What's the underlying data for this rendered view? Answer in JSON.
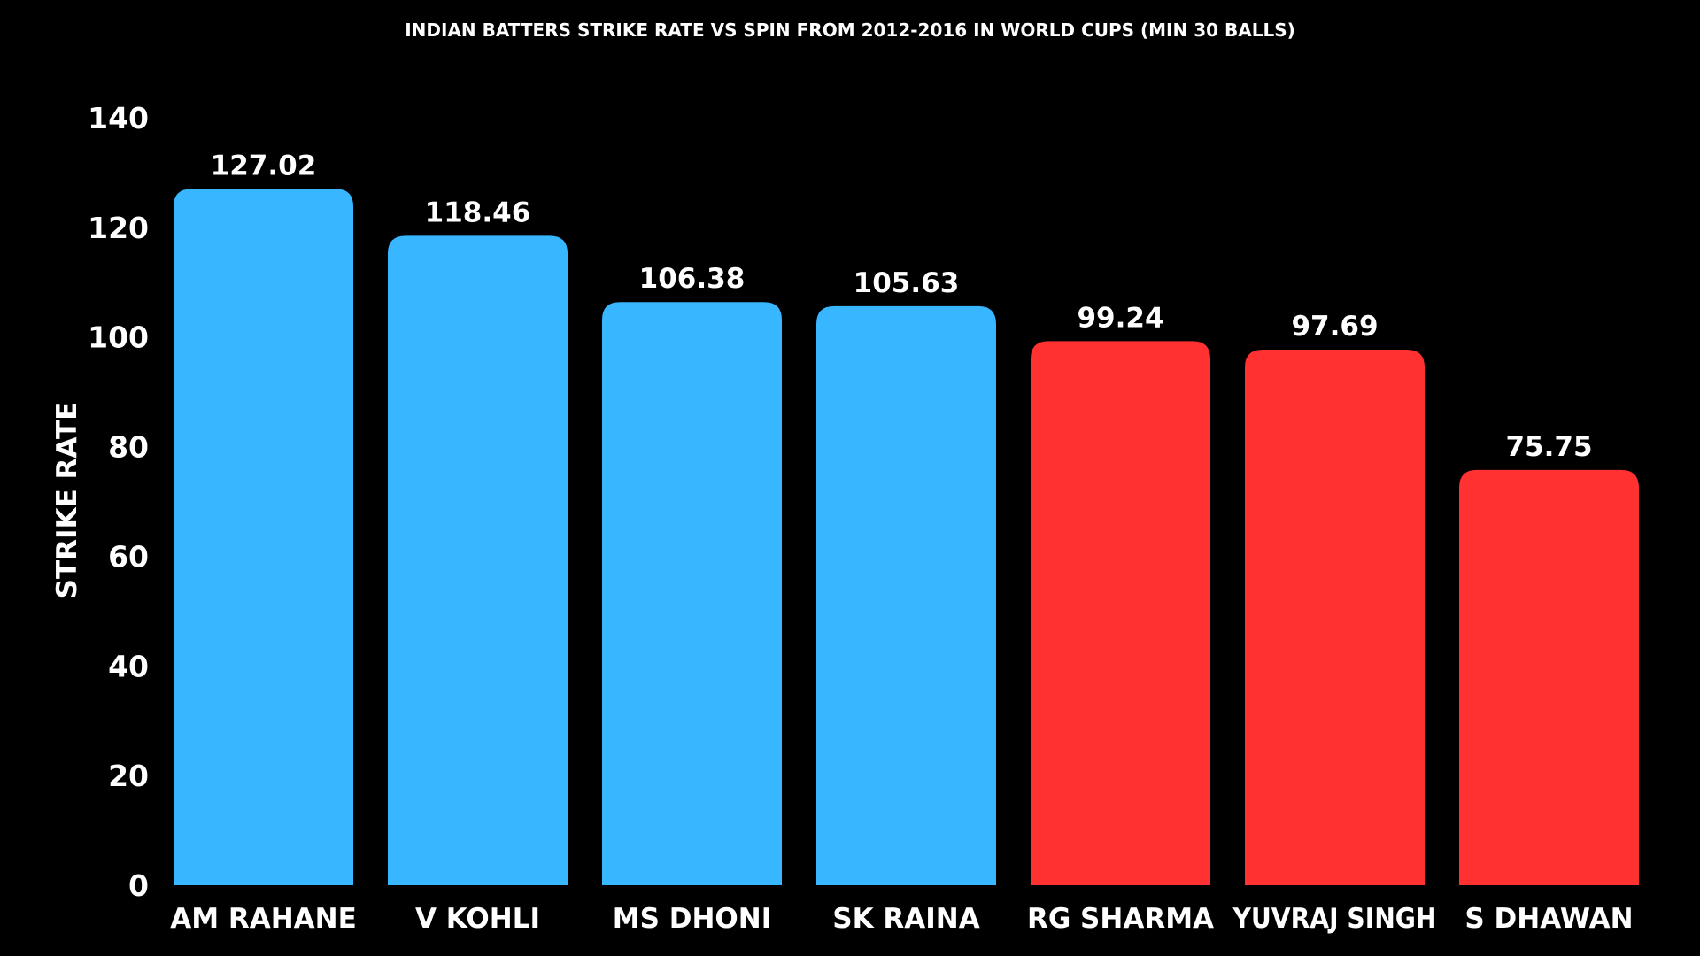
{
  "chart_data": {
    "type": "bar",
    "title": "INDIAN BATTERS STRIKE RATE VS SPIN FROM 2012-2016 IN WORLD CUPS (MIN 30 BALLS)",
    "xlabel": "",
    "ylabel": "STRIKE RATE",
    "categories": [
      "AM RAHANE",
      "V KOHLI",
      "MS DHONI",
      "SK RAINA",
      "RG SHARMA",
      "YUVRAJ SINGH",
      "S DHAWAN"
    ],
    "values": [
      127.02,
      118.46,
      106.38,
      105.63,
      99.24,
      97.69,
      75.75
    ],
    "value_labels": [
      "127.02",
      "118.46",
      "106.38",
      "105.63",
      "99.24",
      "97.69",
      "75.75"
    ],
    "bar_colors": [
      "#38b6ff",
      "#38b6ff",
      "#38b6ff",
      "#38b6ff",
      "#ff3131",
      "#ff3131",
      "#ff3131"
    ],
    "ylim": [
      0,
      140
    ],
    "yticks": [
      0,
      20,
      40,
      60,
      80,
      100,
      120,
      140
    ],
    "grid": false,
    "background": "#000000",
    "text_color": "#ffffff"
  }
}
